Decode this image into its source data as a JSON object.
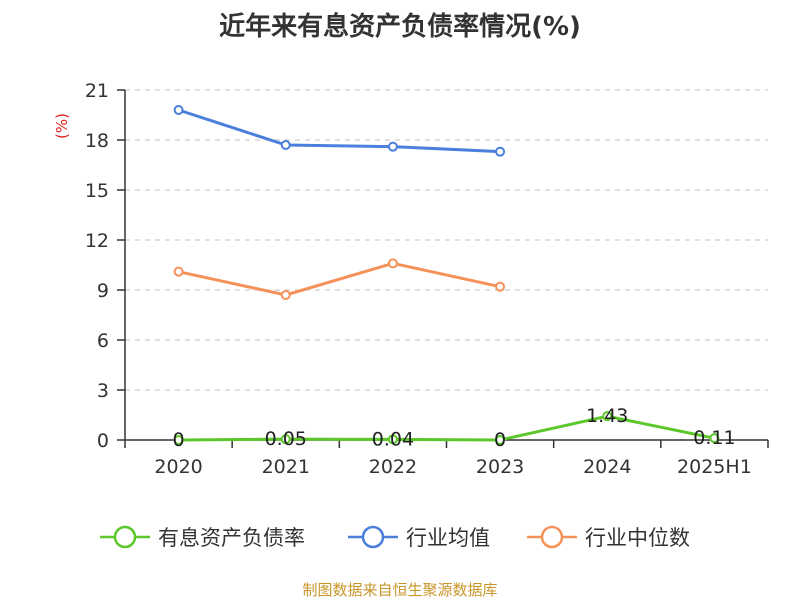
{
  "source_note": "制图数据来自恒生聚源数据库",
  "colors": {
    "有息资产负债率": "#5cc72a",
    "行业均值": "#4a7fdc",
    "行业中位数": "#f5925a",
    "axis": "#333333",
    "grid": "#cccccc",
    "ylabel": "#e02020",
    "source": "#c8962a"
  },
  "chart_data": {
    "type": "line",
    "title": "近年来有息资产负债率情况(%)",
    "ylabel": "(%)",
    "xlabel": "",
    "categories": [
      "2020",
      "2021",
      "2022",
      "2023",
      "2024",
      "2025H1"
    ],
    "ylim": [
      0,
      21
    ],
    "yticks": [
      0,
      3,
      6,
      9,
      12,
      15,
      18,
      21
    ],
    "grid": true,
    "legend_position": "bottom",
    "series": [
      {
        "name": "有息资产负债率",
        "values": [
          0,
          0.05,
          0.04,
          0,
          1.43,
          0.11
        ],
        "labels": [
          "0",
          "0.05",
          "0.04",
          "0",
          "1.43",
          "0.11"
        ]
      },
      {
        "name": "行业均值",
        "values": [
          19.8,
          17.7,
          17.6,
          17.3,
          null,
          null
        ]
      },
      {
        "name": "行业中位数",
        "values": [
          10.1,
          8.7,
          10.6,
          9.2,
          null,
          null
        ]
      }
    ]
  }
}
